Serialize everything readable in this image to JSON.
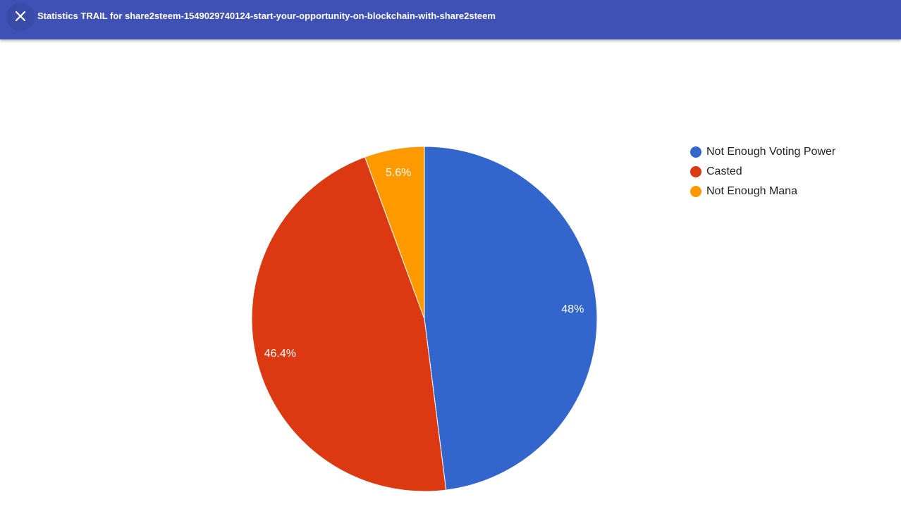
{
  "header": {
    "title": "Statistics TRAIL for share2steem-1549029740124-start-your-opportunity-on-blockchain-with-share2steem"
  },
  "chart_data": {
    "type": "pie",
    "categories": [
      "Not Enough Voting Power",
      "Casted",
      "Not Enough Mana"
    ],
    "values": [
      48,
      46.4,
      5.6
    ],
    "value_labels": [
      "48%",
      "46.4%",
      "5.6%"
    ],
    "colors": [
      "#3366cc",
      "#dc3912",
      "#ff9900"
    ],
    "legend": "right"
  }
}
